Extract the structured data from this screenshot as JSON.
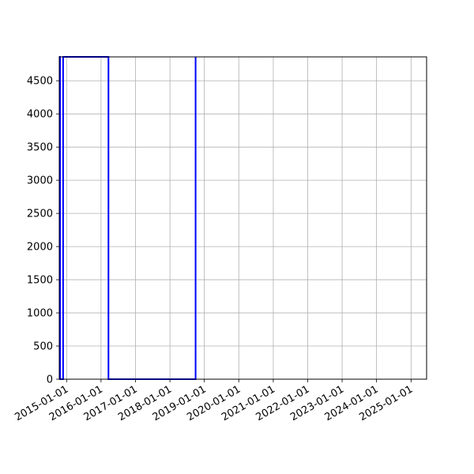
{
  "chart_data": {
    "type": "line",
    "title": "",
    "xlabel": "",
    "ylabel": "",
    "x_type": "date",
    "xlim": [
      "2014-10-15",
      "2025-06-15"
    ],
    "ylim": [
      0,
      4860
    ],
    "grid": true,
    "x_ticks": [
      "2015-01-01",
      "2016-01-01",
      "2017-01-01",
      "2018-01-01",
      "2019-01-01",
      "2020-01-01",
      "2021-01-01",
      "2022-01-01",
      "2023-01-01",
      "2024-01-01",
      "2025-01-01"
    ],
    "y_ticks": [
      0,
      500,
      1000,
      1500,
      2000,
      2500,
      3000,
      3500,
      4000,
      4500
    ],
    "series": [
      {
        "color": "#0000ff",
        "x": [
          "2014-10-20",
          "2014-10-20",
          "2014-10-24",
          "2014-10-24",
          "2014-11-25",
          "2014-11-25",
          "2016-03-20",
          "2016-03-20",
          "2018-09-30",
          "2018-09-30"
        ],
        "y": [
          4290,
          4860,
          4860,
          0,
          0,
          4860,
          4860,
          0,
          0,
          4860
        ]
      }
    ]
  }
}
